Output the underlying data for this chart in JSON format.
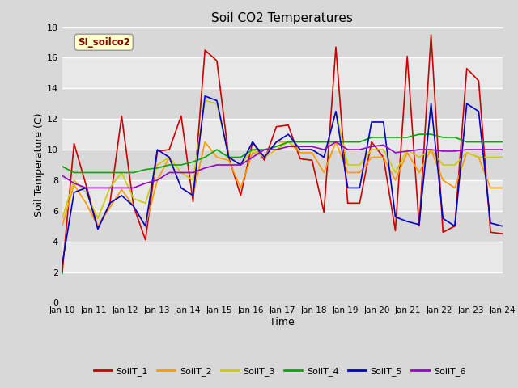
{
  "title": "Soil CO2 Temperatures",
  "xlabel": "Time",
  "ylabel": "Soil Temperature (C)",
  "annotation_text": "SI_soilco2",
  "ylim": [
    0,
    18
  ],
  "x_tick_labels": [
    "Jan 10",
    "Jan 11",
    "Jan 12",
    "Jan 13",
    "Jan 14",
    "Jan 15",
    "Jan 16",
    "Jan 17",
    "Jan 18",
    "Jan 19",
    "Jan 20",
    "Jan 21",
    "Jan 22",
    "Jan 23",
    "Jan 24"
  ],
  "series_colors": [
    "#cc0000",
    "#ff9900",
    "#cccc00",
    "#00aa00",
    "#0000cc",
    "#9900cc"
  ],
  "series_labels": [
    "SoilT_1",
    "SoilT_2",
    "SoilT_3",
    "SoilT_4",
    "SoilT_5",
    "SoilT_6"
  ],
  "background_color": "#d8d8d8",
  "plot_bg_color": "#e8e8e8",
  "band_dark": "#d8d8d8",
  "band_light": "#e8e8e8",
  "SoilT_1": [
    1.9,
    10.4,
    7.7,
    4.9,
    6.4,
    12.2,
    6.3,
    4.1,
    9.9,
    10.0,
    12.2,
    6.6,
    16.5,
    15.8,
    9.5,
    7.0,
    10.5,
    9.3,
    11.5,
    11.6,
    9.4,
    9.3,
    5.9,
    16.7,
    6.5,
    6.5,
    10.5,
    9.5,
    4.7,
    16.1,
    5.0,
    17.5,
    4.6,
    5.0,
    15.3,
    14.5,
    4.6,
    4.5
  ],
  "SoilT_2": [
    5.0,
    7.7,
    6.5,
    5.0,
    6.2,
    7.4,
    6.3,
    5.0,
    8.0,
    9.5,
    7.5,
    7.0,
    10.5,
    9.5,
    9.3,
    7.5,
    9.8,
    9.6,
    10.5,
    10.5,
    9.8,
    9.8,
    8.5,
    10.5,
    8.5,
    8.5,
    9.5,
    9.5,
    8.0,
    9.8,
    8.5,
    10.0,
    8.0,
    7.5,
    9.8,
    9.5,
    7.5,
    7.5
  ],
  "SoilT_3": [
    5.5,
    8.0,
    7.2,
    5.5,
    7.5,
    8.5,
    6.8,
    6.5,
    9.0,
    9.5,
    8.5,
    8.0,
    13.2,
    13.0,
    9.5,
    9.0,
    10.0,
    9.5,
    10.0,
    10.5,
    10.0,
    10.0,
    9.5,
    12.5,
    9.0,
    9.0,
    10.0,
    10.0,
    8.5,
    10.0,
    9.5,
    10.0,
    9.0,
    9.0,
    9.8,
    9.5,
    9.5,
    9.5
  ],
  "SoilT_4": [
    8.9,
    8.5,
    8.5,
    8.5,
    8.5,
    8.5,
    8.5,
    8.7,
    8.8,
    9.0,
    9.0,
    9.2,
    9.5,
    10.0,
    9.5,
    9.5,
    10.0,
    10.0,
    10.2,
    10.5,
    10.5,
    10.5,
    10.5,
    10.5,
    10.5,
    10.5,
    10.8,
    10.8,
    10.8,
    10.8,
    11.0,
    11.0,
    10.8,
    10.8,
    10.5,
    10.5,
    10.5,
    10.5
  ],
  "SoilT_5": [
    2.5,
    7.2,
    7.5,
    4.8,
    6.5,
    7.0,
    6.3,
    5.0,
    10.0,
    9.5,
    7.5,
    7.0,
    13.5,
    13.2,
    9.5,
    9.0,
    10.5,
    9.5,
    10.5,
    11.0,
    10.0,
    10.0,
    9.5,
    12.5,
    7.5,
    7.5,
    11.8,
    11.8,
    5.6,
    5.3,
    5.1,
    13.0,
    5.5,
    5.0,
    13.0,
    12.5,
    5.2,
    5.0
  ],
  "SoilT_6": [
    8.3,
    7.8,
    7.5,
    7.5,
    7.5,
    7.5,
    7.5,
    7.8,
    8.0,
    8.5,
    8.5,
    8.5,
    8.8,
    9.0,
    9.0,
    9.0,
    9.5,
    10.0,
    10.0,
    10.2,
    10.2,
    10.2,
    10.0,
    10.5,
    10.0,
    10.0,
    10.2,
    10.3,
    9.8,
    9.9,
    10.0,
    10.0,
    9.9,
    9.9,
    10.0,
    10.0,
    10.0,
    10.0
  ]
}
